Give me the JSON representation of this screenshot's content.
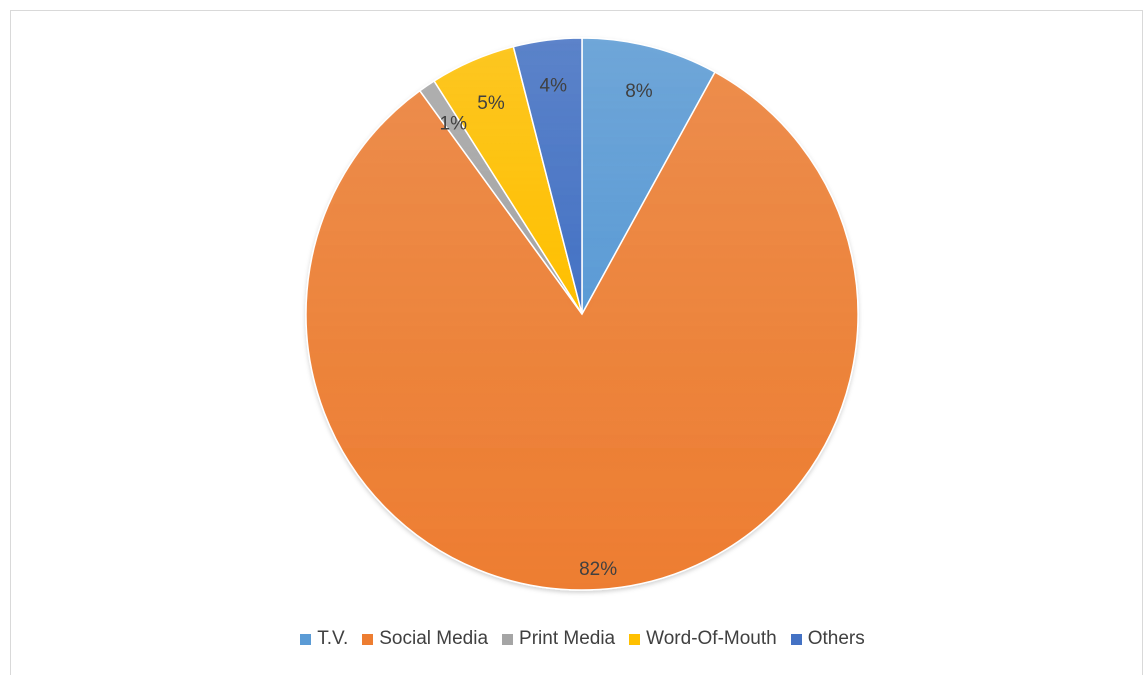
{
  "chart_data": {
    "type": "pie",
    "title": "",
    "legend_position": "bottom",
    "slices": [
      {
        "label": "T.V.",
        "value": 8,
        "display": "8%",
        "color": "#5b9bd5"
      },
      {
        "label": "Social Media",
        "value": 82,
        "display": "82%",
        "color": "#ed7d31"
      },
      {
        "label": "Print Media",
        "value": 1,
        "display": "1%",
        "color": "#a5a5a5"
      },
      {
        "label": "Word-Of-Mouth",
        "value": 5,
        "display": "5%",
        "color": "#ffc000"
      },
      {
        "label": "Others",
        "value": 4,
        "display": "4%",
        "color": "#4472c4"
      }
    ]
  }
}
